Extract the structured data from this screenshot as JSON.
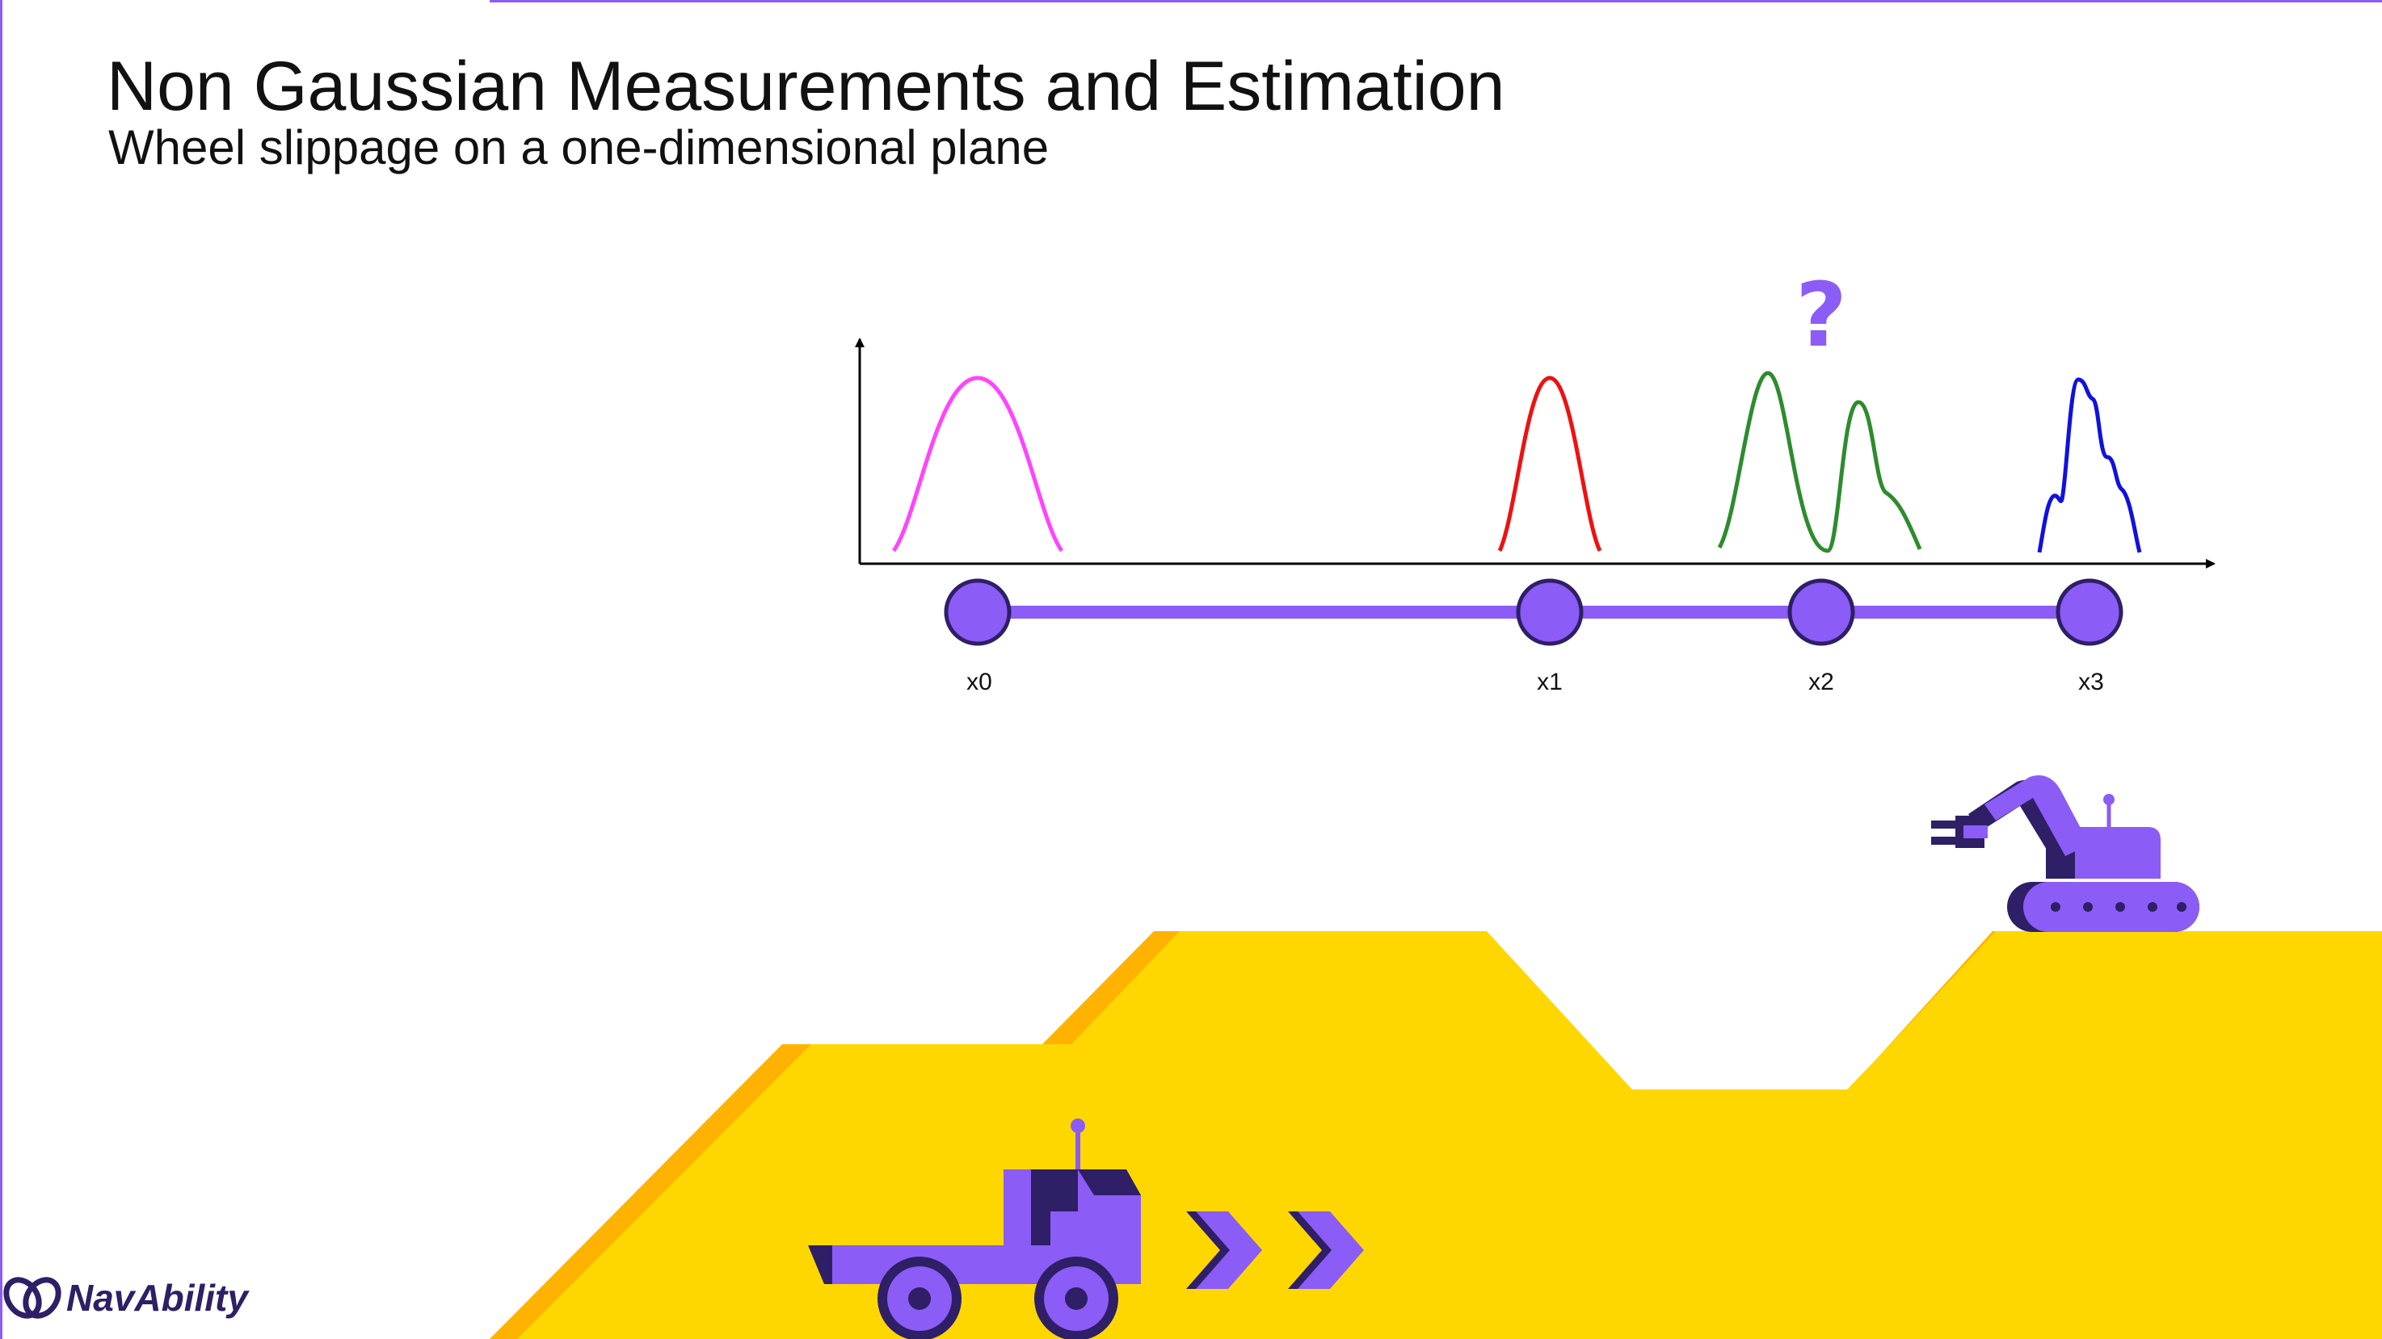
{
  "header": {
    "title": "Non Gaussian Measurements and Estimation",
    "subtitle": "Wheel slippage on a one-dimensional plane"
  },
  "diagram": {
    "question_mark": "?",
    "nodes": [
      {
        "label": "x0",
        "distribution": "gaussian",
        "color": "#ff44ff"
      },
      {
        "label": "x1",
        "distribution": "gaussian",
        "color": "#ee1111"
      },
      {
        "label": "x2",
        "distribution": "bimodal",
        "color": "#2e8b2e"
      },
      {
        "label": "x3",
        "distribution": "non-gaussian",
        "color": "#1111dd"
      }
    ],
    "node_color": "#8b5cf6",
    "terrain_color": "#ffd700",
    "terrain_edge_color": "#ffb300"
  },
  "logo": {
    "text": "NavAbility",
    "icon": "navability-knot-icon"
  }
}
